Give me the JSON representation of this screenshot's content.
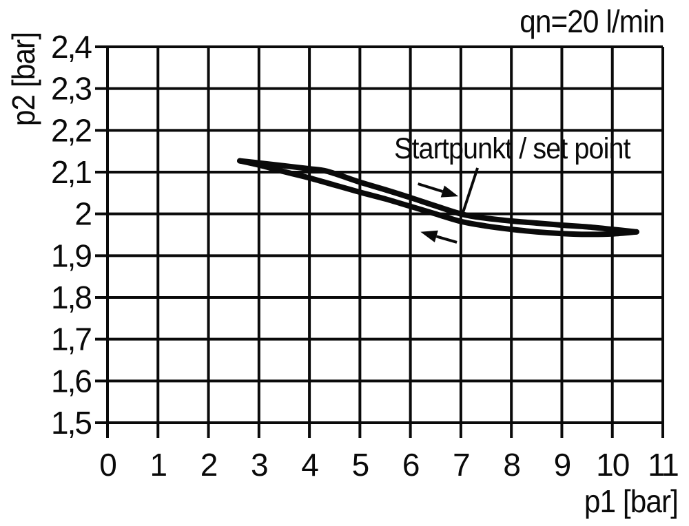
{
  "page": {
    "background": "#ffffff",
    "ink_color": "#0a0a0a"
  },
  "chart_data": {
    "type": "line",
    "title": "qn=20 l/min",
    "xlabel": "p1 [bar]",
    "ylabel": "p2 [bar]",
    "xlim": [
      0,
      11
    ],
    "ylim": [
      1.5,
      2.4
    ],
    "grid": true,
    "legend": "none",
    "x_ticks": [
      0,
      1,
      2,
      3,
      4,
      5,
      6,
      7,
      8,
      9,
      10,
      11
    ],
    "x_tick_labels": [
      "0",
      "1",
      "2",
      "3",
      "4",
      "5",
      "6",
      "7",
      "8",
      "9",
      "10",
      "11"
    ],
    "y_ticks": [
      2.4,
      2.3,
      2.2,
      2.1,
      2.0,
      1.9,
      1.8,
      1.7,
      1.6,
      1.5
    ],
    "y_tick_labels": [
      "2,4",
      "2,3",
      "2,2",
      "2,1",
      "2",
      "1,9",
      "1,8",
      "1,7",
      "1,6",
      "1,5"
    ],
    "series": [
      {
        "name": "upper-branch-through-set-point",
        "direction": "increasing p1",
        "points": [
          [
            2.62,
            2.127
          ],
          [
            3.0,
            2.122
          ],
          [
            3.5,
            2.115
          ],
          [
            4.0,
            2.108
          ],
          [
            4.35,
            2.102
          ],
          [
            5.0,
            2.076
          ],
          [
            5.5,
            2.058
          ],
          [
            6.0,
            2.039
          ],
          [
            6.5,
            2.019
          ],
          [
            7.0,
            2.0
          ],
          [
            7.4,
            1.991
          ],
          [
            8.0,
            1.983
          ],
          [
            8.5,
            1.978
          ],
          [
            9.0,
            1.973
          ],
          [
            9.5,
            1.969
          ],
          [
            10.0,
            1.963
          ],
          [
            10.48,
            1.957
          ]
        ]
      },
      {
        "name": "lower-return-branch",
        "direction": "decreasing p1",
        "points": [
          [
            2.62,
            2.127
          ],
          [
            3.0,
            2.117
          ],
          [
            3.5,
            2.101
          ],
          [
            4.0,
            2.086
          ],
          [
            4.5,
            2.069
          ],
          [
            5.0,
            2.052
          ],
          [
            5.5,
            2.036
          ],
          [
            6.0,
            2.018
          ],
          [
            6.5,
            2.0
          ],
          [
            7.0,
            1.982
          ],
          [
            7.5,
            1.971
          ],
          [
            8.0,
            1.963
          ],
          [
            8.5,
            1.957
          ],
          [
            9.0,
            1.953
          ],
          [
            9.5,
            1.951
          ],
          [
            10.0,
            1.952
          ],
          [
            10.48,
            1.957
          ]
        ]
      }
    ],
    "annotations": {
      "set_point_label": "Startpunkt / set point",
      "set_point_xy": [
        7.0,
        2.0
      ],
      "leader_line": {
        "from": [
          7.33,
          2.11
        ],
        "to": [
          7.03,
          1.999
        ]
      },
      "arrows": [
        {
          "name": "direction-arrow-right",
          "from": [
            6.15,
            2.072
          ],
          "to": [
            6.95,
            2.042
          ]
        },
        {
          "name": "direction-arrow-left",
          "from": [
            6.92,
            1.932
          ],
          "to": [
            6.2,
            1.957
          ]
        }
      ]
    }
  }
}
